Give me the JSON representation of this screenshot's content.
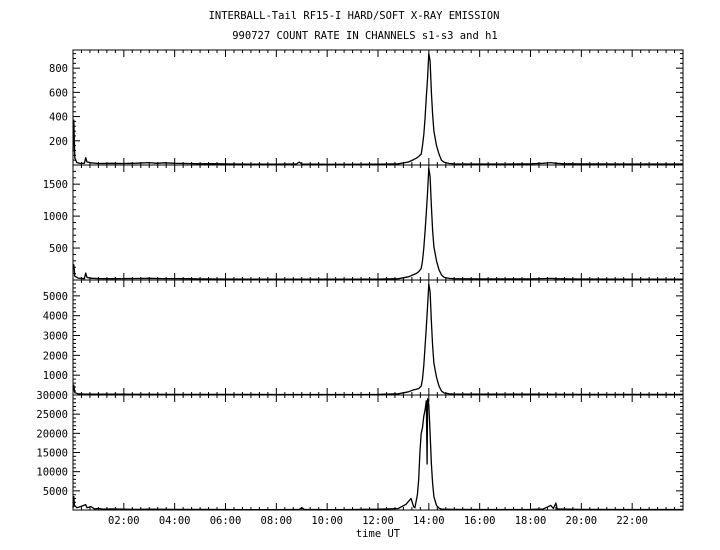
{
  "title_line1": "INTERBALL-Tail RF15-I HARD/SOFT X-RAY EMISSION",
  "title_line2": "990727  COUNT RATE IN CHANNELS s1-s3 and h1",
  "xlabel": "time UT",
  "chart_data": {
    "type": "line",
    "title": "INTERBALL-Tail RF15-I HARD/SOFT X-RAY EMISSION",
    "subtitle": "990727  COUNT RATE IN CHANNELS s1-s3 and h1",
    "xlabel": "time UT",
    "xlim": [
      0,
      24
    ],
    "x_ticks": [
      "02:00",
      "04:00",
      "06:00",
      "08:00",
      "10:00",
      "12:00",
      "14:00",
      "16:00",
      "18:00",
      "20:00",
      "22:00"
    ],
    "grid": false,
    "line_color": "#000000",
    "panels": [
      {
        "ylim": [
          0,
          950
        ],
        "y_ticks": [
          200,
          400,
          600,
          800
        ],
        "peak_hour": 14.0,
        "peak_value": 920,
        "data": [
          [
            0.0,
            110
          ],
          [
            0.03,
            370
          ],
          [
            0.07,
            60
          ],
          [
            0.15,
            20
          ],
          [
            0.3,
            12
          ],
          [
            0.45,
            15
          ],
          [
            0.5,
            60
          ],
          [
            0.55,
            25
          ],
          [
            0.7,
            18
          ],
          [
            1.0,
            12
          ],
          [
            1.5,
            14
          ],
          [
            2.0,
            12
          ],
          [
            2.5,
            15
          ],
          [
            3.0,
            20
          ],
          [
            3.3,
            14
          ],
          [
            3.6,
            18
          ],
          [
            4.0,
            14
          ],
          [
            4.5,
            12
          ],
          [
            5.0,
            10
          ],
          [
            5.5,
            11
          ],
          [
            6.0,
            9
          ],
          [
            7.0,
            7
          ],
          [
            8.0,
            7
          ],
          [
            8.8,
            9
          ],
          [
            8.9,
            24
          ],
          [
            9.0,
            8
          ],
          [
            10.0,
            6
          ],
          [
            11.0,
            6
          ],
          [
            12.0,
            7
          ],
          [
            12.8,
            10
          ],
          [
            13.2,
            25
          ],
          [
            13.4,
            45
          ],
          [
            13.5,
            55
          ],
          [
            13.6,
            70
          ],
          [
            13.7,
            90
          ],
          [
            13.75,
            160
          ],
          [
            13.8,
            250
          ],
          [
            13.85,
            380
          ],
          [
            13.9,
            560
          ],
          [
            13.95,
            720
          ],
          [
            14.0,
            920
          ],
          [
            14.05,
            860
          ],
          [
            14.1,
            600
          ],
          [
            14.15,
            420
          ],
          [
            14.2,
            280
          ],
          [
            14.3,
            160
          ],
          [
            14.4,
            90
          ],
          [
            14.5,
            40
          ],
          [
            14.6,
            22
          ],
          [
            14.8,
            12
          ],
          [
            15.0,
            9
          ],
          [
            16.0,
            8
          ],
          [
            17.0,
            8
          ],
          [
            18.0,
            10
          ],
          [
            18.5,
            14
          ],
          [
            18.8,
            20
          ],
          [
            19.0,
            14
          ],
          [
            19.3,
            10
          ],
          [
            19.5,
            10
          ],
          [
            20.0,
            9
          ],
          [
            22.0,
            8
          ],
          [
            24.0,
            8
          ]
        ]
      },
      {
        "ylim": [
          0,
          1800
        ],
        "y_ticks": [
          500,
          1000,
          1500
        ],
        "peak_hour": 14.0,
        "peak_value": 1750,
        "data": [
          [
            0.0,
            180
          ],
          [
            0.03,
            240
          ],
          [
            0.07,
            60
          ],
          [
            0.2,
            30
          ],
          [
            0.45,
            20
          ],
          [
            0.5,
            110
          ],
          [
            0.55,
            40
          ],
          [
            0.7,
            28
          ],
          [
            1.0,
            22
          ],
          [
            1.5,
            20
          ],
          [
            2.0,
            22
          ],
          [
            2.5,
            24
          ],
          [
            3.0,
            26
          ],
          [
            3.5,
            22
          ],
          [
            4.0,
            22
          ],
          [
            4.5,
            20
          ],
          [
            5.0,
            18
          ],
          [
            6.0,
            16
          ],
          [
            7.0,
            14
          ],
          [
            8.0,
            14
          ],
          [
            9.0,
            12
          ],
          [
            10.0,
            12
          ],
          [
            11.0,
            12
          ],
          [
            12.0,
            14
          ],
          [
            12.8,
            20
          ],
          [
            13.2,
            50
          ],
          [
            13.4,
            85
          ],
          [
            13.5,
            100
          ],
          [
            13.6,
            130
          ],
          [
            13.7,
            180
          ],
          [
            13.75,
            300
          ],
          [
            13.8,
            500
          ],
          [
            13.85,
            750
          ],
          [
            13.9,
            1050
          ],
          [
            13.95,
            1380
          ],
          [
            14.0,
            1750
          ],
          [
            14.05,
            1620
          ],
          [
            14.1,
            1150
          ],
          [
            14.15,
            780
          ],
          [
            14.2,
            520
          ],
          [
            14.3,
            300
          ],
          [
            14.4,
            160
          ],
          [
            14.5,
            80
          ],
          [
            14.6,
            40
          ],
          [
            14.8,
            25
          ],
          [
            15.0,
            20
          ],
          [
            16.0,
            18
          ],
          [
            17.0,
            18
          ],
          [
            18.0,
            18
          ],
          [
            18.5,
            22
          ],
          [
            18.8,
            25
          ],
          [
            19.0,
            20
          ],
          [
            19.5,
            18
          ],
          [
            20.0,
            16
          ],
          [
            22.0,
            14
          ],
          [
            24.0,
            14
          ]
        ]
      },
      {
        "ylim": [
          0,
          5800
        ],
        "y_ticks": [
          1000,
          2000,
          3000,
          4000,
          5000
        ],
        "peak_hour": 14.0,
        "peak_value": 5600,
        "data": [
          [
            0.0,
            250
          ],
          [
            0.03,
            500
          ],
          [
            0.07,
            120
          ],
          [
            0.2,
            60
          ],
          [
            0.5,
            45
          ],
          [
            1.0,
            40
          ],
          [
            2.0,
            38
          ],
          [
            3.0,
            35
          ],
          [
            4.0,
            32
          ],
          [
            5.0,
            30
          ],
          [
            6.0,
            28
          ],
          [
            7.0,
            28
          ],
          [
            8.0,
            25
          ],
          [
            9.0,
            25
          ],
          [
            10.0,
            25
          ],
          [
            11.0,
            25
          ],
          [
            12.0,
            30
          ],
          [
            12.8,
            60
          ],
          [
            13.2,
            160
          ],
          [
            13.4,
            260
          ],
          [
            13.5,
            280
          ],
          [
            13.6,
            330
          ],
          [
            13.7,
            450
          ],
          [
            13.75,
            800
          ],
          [
            13.8,
            1500
          ],
          [
            13.85,
            2400
          ],
          [
            13.9,
            3400
          ],
          [
            13.95,
            4500
          ],
          [
            14.0,
            5600
          ],
          [
            14.05,
            5200
          ],
          [
            14.1,
            3700
          ],
          [
            14.15,
            2500
          ],
          [
            14.2,
            1600
          ],
          [
            14.3,
            900
          ],
          [
            14.4,
            450
          ],
          [
            14.5,
            200
          ],
          [
            14.6,
            100
          ],
          [
            14.8,
            60
          ],
          [
            15.0,
            45
          ],
          [
            16.0,
            40
          ],
          [
            17.0,
            38
          ],
          [
            18.0,
            38
          ],
          [
            19.0,
            35
          ],
          [
            20.0,
            32
          ],
          [
            22.0,
            30
          ],
          [
            24.0,
            30
          ]
        ]
      },
      {
        "ylim": [
          0,
          30000
        ],
        "y_ticks": [
          5000,
          10000,
          15000,
          20000,
          25000,
          30000
        ],
        "peak_hour": 13.95,
        "peak_value": 29000,
        "data": [
          [
            0.0,
            500
          ],
          [
            0.03,
            3500
          ],
          [
            0.06,
            1200
          ],
          [
            0.15,
            600
          ],
          [
            0.3,
            900
          ],
          [
            0.5,
            1400
          ],
          [
            0.55,
            600
          ],
          [
            0.7,
            900
          ],
          [
            0.85,
            300
          ],
          [
            1.0,
            400
          ],
          [
            1.2,
            200
          ],
          [
            1.5,
            300
          ],
          [
            2.0,
            200
          ],
          [
            2.5,
            150
          ],
          [
            3.0,
            200
          ],
          [
            4.0,
            150
          ],
          [
            5.0,
            150
          ],
          [
            6.0,
            120
          ],
          [
            7.0,
            100
          ],
          [
            8.0,
            100
          ],
          [
            8.9,
            150
          ],
          [
            9.0,
            600
          ],
          [
            9.1,
            150
          ],
          [
            10.0,
            100
          ],
          [
            11.0,
            120
          ],
          [
            12.0,
            200
          ],
          [
            12.8,
            400
          ],
          [
            13.1,
            1500
          ],
          [
            13.3,
            3000
          ],
          [
            13.4,
            900
          ],
          [
            13.45,
            600
          ],
          [
            13.55,
            4000
          ],
          [
            13.6,
            8000
          ],
          [
            13.65,
            15000
          ],
          [
            13.7,
            20000
          ],
          [
            13.75,
            21500
          ],
          [
            13.8,
            24500
          ],
          [
            13.85,
            26000
          ],
          [
            13.9,
            28500
          ],
          [
            13.93,
            12000
          ],
          [
            13.95,
            29000
          ],
          [
            14.0,
            27500
          ],
          [
            14.05,
            20000
          ],
          [
            14.1,
            12000
          ],
          [
            14.15,
            7000
          ],
          [
            14.2,
            3500
          ],
          [
            14.3,
            1200
          ],
          [
            14.4,
            500
          ],
          [
            14.5,
            200
          ],
          [
            15.0,
            150
          ],
          [
            16.0,
            120
          ],
          [
            17.0,
            120
          ],
          [
            18.0,
            150
          ],
          [
            18.5,
            250
          ],
          [
            18.8,
            1200
          ],
          [
            18.9,
            400
          ],
          [
            19.0,
            1800
          ],
          [
            19.05,
            300
          ],
          [
            19.5,
            200
          ],
          [
            20.0,
            150
          ],
          [
            22.0,
            120
          ],
          [
            24.0,
            120
          ]
        ]
      }
    ]
  }
}
